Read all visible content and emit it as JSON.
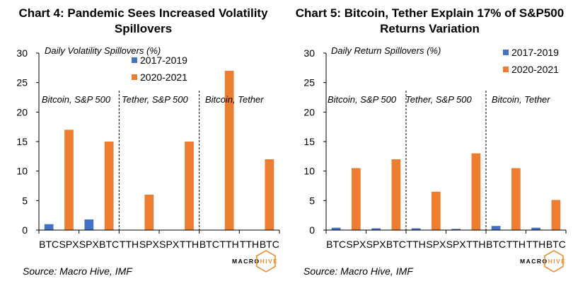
{
  "chart_data": [
    {
      "type": "bar",
      "title_lines": [
        "Chart 4: Pandemic Sees Increased Volatility",
        "Spillovers"
      ],
      "ylabel": "Daily Volatility Spillovers (%)",
      "ylim": [
        0,
        30
      ],
      "yticks": [
        "0",
        "5",
        "10",
        "15",
        "20",
        "25",
        "30"
      ],
      "categories": [
        "BTC",
        "SPX",
        "SPX",
        "BTC",
        "TTH",
        "SPX",
        "SPX",
        "TTH",
        "BTC",
        "TTH",
        "TTH",
        "BTC"
      ],
      "series": [
        {
          "name": "2017-2019",
          "color": "#4472c4",
          "values": [
            1.0,
            null,
            1.8,
            null,
            null,
            null,
            null,
            null,
            null,
            null,
            null,
            null
          ]
        },
        {
          "name": "2020-2021",
          "color": "#ed7d31",
          "values": [
            null,
            17.0,
            null,
            15.0,
            null,
            6.0,
            null,
            15.0,
            null,
            27.0,
            null,
            12.0
          ]
        }
      ],
      "groups": [
        "Bitcoin, S&P 500",
        "Tether, S&P 500",
        "Bitcoin, Tether"
      ],
      "legend_position": "top-right",
      "grid": false,
      "source": "Source: Macro Hive, IMF"
    },
    {
      "type": "bar",
      "title_lines": [
        "Chart 5: Bitcoin, Tether Explain 17% of S&P500",
        "Returns Variation"
      ],
      "ylabel": "Daily Return Spillovers (%)",
      "ylim": [
        0,
        30
      ],
      "yticks": [
        "0",
        "5",
        "10",
        "15",
        "20",
        "25",
        "30"
      ],
      "categories": [
        "BTC",
        "SPX",
        "SPX",
        "BTC",
        "TTH",
        "SPX",
        "SPX",
        "TTH",
        "BTC",
        "TTH",
        "TTH",
        "BTC"
      ],
      "series": [
        {
          "name": "2017-2019",
          "color": "#4472c4",
          "values": [
            0.4,
            null,
            0.3,
            null,
            0.3,
            null,
            0.2,
            null,
            0.7,
            null,
            0.4,
            null
          ]
        },
        {
          "name": "2020-2021",
          "color": "#ed7d31",
          "values": [
            null,
            10.5,
            null,
            12.0,
            null,
            6.5,
            null,
            13.0,
            null,
            10.5,
            null,
            5.1
          ]
        }
      ],
      "groups": [
        "Bitcoin, S&P 500",
        "Tether, S&P 500",
        "Bitcoin, Tether"
      ],
      "legend_position": "top-right",
      "grid": false,
      "source": "Source: Macro Hive, IMF"
    }
  ],
  "brand": {
    "part1": "MACRO",
    "part2": "HIVE",
    "accent": "#e8923a"
  }
}
